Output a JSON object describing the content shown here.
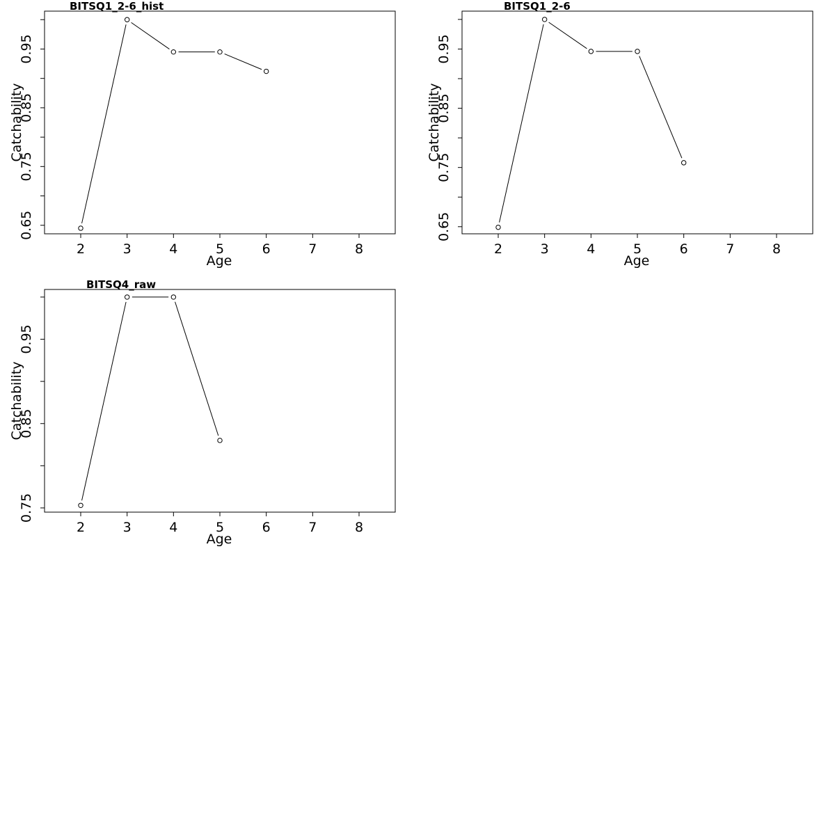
{
  "chart_data": [
    {
      "type": "line",
      "title": "BITSQ1_2-6_hist",
      "xlabel": "Age",
      "ylabel": "Catchability",
      "xlim": [
        1.22,
        8.78
      ],
      "ylim": [
        0.6355,
        1.0145
      ],
      "xticks": [
        2,
        3,
        4,
        5,
        6,
        7,
        8
      ],
      "yticks": [
        0.65,
        0.75,
        0.85,
        0.95
      ],
      "yticks_minor": [
        0.7,
        0.8,
        0.9,
        1.0
      ],
      "series": [
        {
          "x": [
            2,
            3,
            4,
            5,
            6
          ],
          "values": [
            0.645,
            1.0,
            0.945,
            0.945,
            0.912
          ]
        }
      ]
    },
    {
      "type": "line",
      "title": "BITSQ1_2-6",
      "xlabel": "Age",
      "ylabel": "Catchability",
      "xlim": [
        1.22,
        8.78
      ],
      "ylim": [
        0.638,
        1.014
      ],
      "xticks": [
        2,
        3,
        4,
        5,
        6,
        7,
        8
      ],
      "yticks": [
        0.65,
        0.75,
        0.85,
        0.95
      ],
      "yticks_minor": [
        0.7,
        0.8,
        0.9,
        1.0
      ],
      "series": [
        {
          "x": [
            2,
            3,
            4,
            5,
            6
          ],
          "values": [
            0.649,
            1.0,
            0.946,
            0.946,
            0.758
          ]
        }
      ]
    },
    {
      "type": "line",
      "title": "BITSQ4_raw",
      "xlabel": "Age",
      "ylabel": "Catchability",
      "xlim": [
        1.22,
        8.78
      ],
      "ylim": [
        0.745,
        1.009
      ],
      "xticks": [
        2,
        3,
        4,
        5,
        6,
        7,
        8
      ],
      "yticks": [
        0.75,
        0.85,
        0.95
      ],
      "yticks_minor": [
        0.8,
        0.9,
        1.0
      ],
      "series": [
        {
          "x": [
            2,
            3,
            4,
            5
          ],
          "values": [
            0.753,
            1.0,
            1.0,
            0.83
          ]
        }
      ]
    }
  ]
}
